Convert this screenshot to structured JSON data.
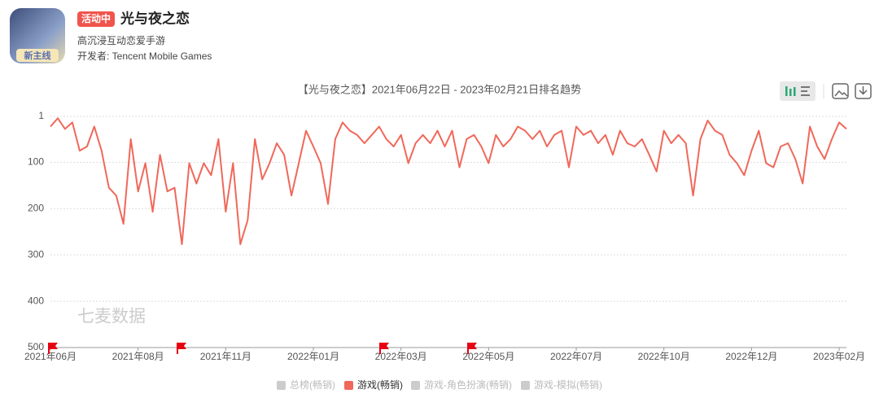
{
  "app": {
    "icon_label": "新主线",
    "badge": "活动中",
    "name": "光与夜之恋",
    "subtitle": "高沉浸互动恋爱手游",
    "developer": "开发者: Tencent Mobile Games"
  },
  "chart_data": {
    "type": "line",
    "title": "【光与夜之恋】2021年06月22日 - 2023年02月21日排名趋势",
    "watermark": "七麦数据",
    "categories": [
      "2021年06月",
      null,
      null,
      null,
      null,
      null,
      null,
      null,
      null,
      null,
      null,
      null,
      "2021年08月",
      null,
      null,
      null,
      null,
      null,
      null,
      null,
      null,
      null,
      null,
      null,
      "2021年11月",
      null,
      null,
      null,
      null,
      null,
      null,
      null,
      null,
      null,
      null,
      null,
      "2022年01月",
      null,
      null,
      null,
      null,
      null,
      null,
      null,
      null,
      null,
      null,
      null,
      "2022年03月",
      null,
      null,
      null,
      null,
      null,
      null,
      null,
      null,
      null,
      null,
      null,
      "2022年05月",
      null,
      null,
      null,
      null,
      null,
      null,
      null,
      null,
      null,
      null,
      null,
      "2022年07月",
      null,
      null,
      null,
      null,
      null,
      null,
      null,
      null,
      null,
      null,
      null,
      "2022年10月",
      null,
      null,
      null,
      null,
      null,
      null,
      null,
      null,
      null,
      null,
      null,
      "2022年12月",
      null,
      null,
      null,
      null,
      null,
      null,
      null,
      null,
      null,
      null,
      null,
      "2023年02月",
      null
    ],
    "series": [
      {
        "name": "总榜(畅销)",
        "color": "#cccccc",
        "visible": false
      },
      {
        "name": "游戏(畅销)",
        "color": "#f0685a",
        "visible": true,
        "values": [
          23,
          5,
          28,
          14,
          75,
          66,
          23,
          75,
          155,
          172,
          233,
          50,
          163,
          102,
          207,
          84,
          163,
          155,
          277,
          102,
          146,
          102,
          128,
          50,
          207,
          102,
          277,
          225,
          50,
          137,
          102,
          59,
          84,
          172,
          102,
          32,
          66,
          102,
          190,
          50,
          14,
          32,
          41,
          59,
          41,
          23,
          50,
          66,
          41,
          102,
          59,
          41,
          59,
          32,
          66,
          32,
          111,
          50,
          41,
          66,
          102,
          41,
          66,
          50,
          23,
          32,
          50,
          32,
          66,
          41,
          32,
          111,
          23,
          41,
          32,
          59,
          41,
          84,
          32,
          59,
          66,
          50,
          84,
          120,
          32,
          59,
          41,
          59,
          172,
          50,
          10,
          32,
          41,
          84,
          102,
          128,
          75,
          32,
          102,
          111,
          66,
          59,
          93,
          146,
          23,
          66,
          93,
          50,
          14,
          28
        ]
      },
      {
        "name": "游戏-角色扮演(畅销)",
        "color": "#cccccc",
        "visible": false
      },
      {
        "name": "游戏-模拟(畅销)",
        "color": "#cccccc",
        "visible": false
      }
    ],
    "ylim": [
      1,
      500
    ],
    "yticks": [
      1,
      100,
      200,
      300,
      400,
      500
    ],
    "y_reversed": true,
    "grid": true
  }
}
